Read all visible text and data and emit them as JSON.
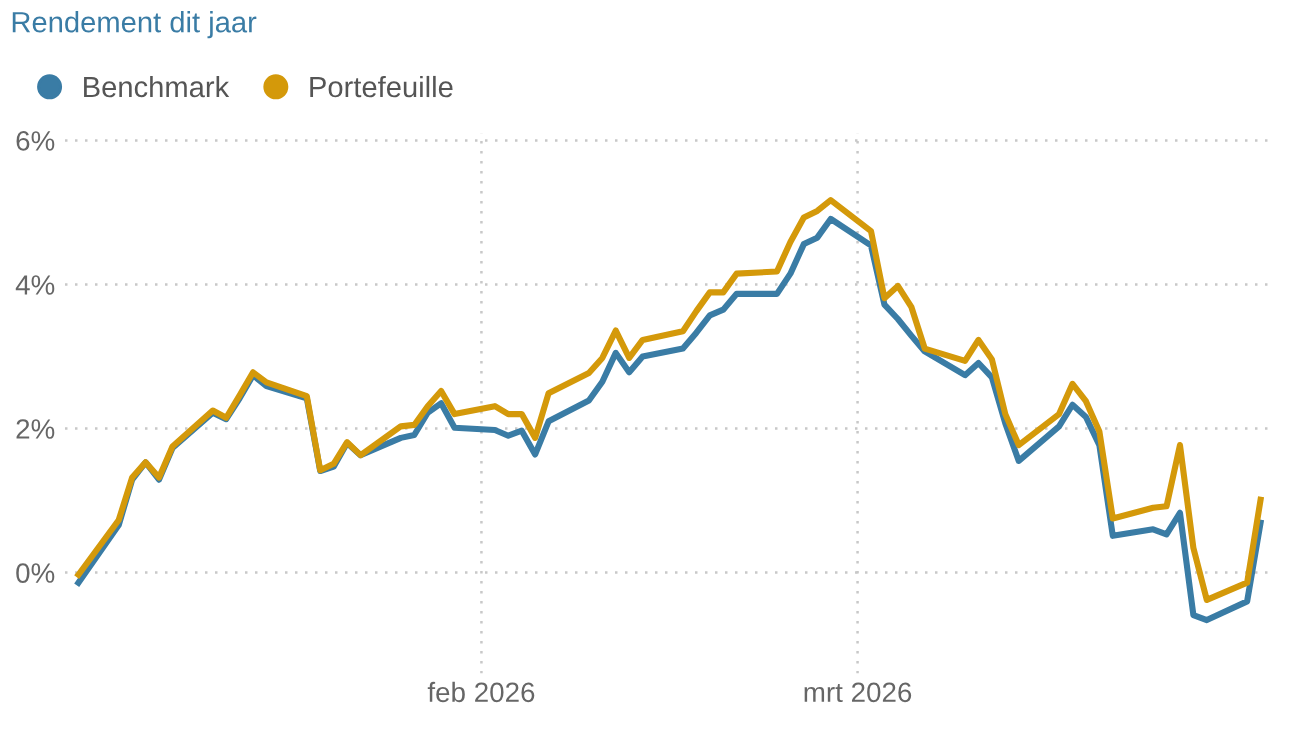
{
  "chart_data": {
    "type": "line",
    "title": "Rendement dit jaar",
    "x": [
      "2026-01-02",
      "2026-01-05",
      "2026-01-06",
      "2026-01-07",
      "2026-01-08",
      "2026-01-09",
      "2026-01-12",
      "2026-01-13",
      "2026-01-14",
      "2026-01-15",
      "2026-01-16",
      "2026-01-19",
      "2026-01-20",
      "2026-01-21",
      "2026-01-22",
      "2026-01-23",
      "2026-01-26",
      "2026-01-27",
      "2026-01-28",
      "2026-01-29",
      "2026-01-30",
      "2026-02-02",
      "2026-02-03",
      "2026-02-04",
      "2026-02-05",
      "2026-02-06",
      "2026-02-09",
      "2026-02-10",
      "2026-02-11",
      "2026-02-12",
      "2026-02-13",
      "2026-02-16",
      "2026-02-17",
      "2026-02-18",
      "2026-02-19",
      "2026-02-20",
      "2026-02-23",
      "2026-02-24",
      "2026-02-25",
      "2026-02-26",
      "2026-02-27",
      "2026-03-02",
      "2026-03-03",
      "2026-03-04",
      "2026-03-05",
      "2026-03-06",
      "2026-03-09",
      "2026-03-10",
      "2026-03-11",
      "2026-03-12",
      "2026-03-13",
      "2026-03-16",
      "2026-03-17",
      "2026-03-18",
      "2026-03-19",
      "2026-03-20",
      "2026-03-23",
      "2026-03-24",
      "2026-03-25",
      "2026-03-26",
      "2026-03-27",
      "2026-03-30",
      "2026-03-31"
    ],
    "series": [
      {
        "name": "Benchmark",
        "color": "#3a7ca5",
        "values": [
          -0.14,
          0.66,
          1.29,
          1.53,
          1.29,
          1.73,
          2.22,
          2.13,
          2.42,
          2.74,
          2.59,
          2.42,
          1.41,
          1.47,
          1.8,
          1.63,
          1.87,
          1.91,
          2.22,
          2.35,
          2.01,
          1.98,
          1.9,
          1.97,
          1.64,
          2.1,
          2.39,
          2.65,
          3.05,
          2.78,
          3.0,
          3.11,
          3.33,
          3.57,
          3.65,
          3.87,
          3.87,
          4.15,
          4.56,
          4.65,
          4.91,
          4.54,
          3.72,
          3.52,
          3.29,
          3.07,
          2.74,
          2.91,
          2.71,
          2.07,
          1.55,
          2.03,
          2.33,
          2.16,
          1.77,
          0.51,
          0.6,
          0.53,
          0.83,
          -0.59,
          -0.66,
          -0.4,
          0.69
        ]
      },
      {
        "name": "Portefeuille",
        "color": "#d4990a",
        "values": [
          -0.03,
          0.73,
          1.32,
          1.53,
          1.32,
          1.75,
          2.25,
          2.15,
          2.46,
          2.78,
          2.64,
          2.45,
          1.42,
          1.51,
          1.81,
          1.63,
          2.03,
          2.05,
          2.31,
          2.52,
          2.2,
          2.31,
          2.2,
          2.2,
          1.87,
          2.49,
          2.77,
          2.98,
          3.36,
          2.98,
          3.23,
          3.35,
          3.63,
          3.89,
          3.89,
          4.15,
          4.18,
          4.59,
          4.93,
          5.02,
          5.17,
          4.74,
          3.81,
          3.98,
          3.69,
          3.11,
          2.94,
          3.23,
          2.96,
          2.2,
          1.77,
          2.2,
          2.62,
          2.38,
          1.96,
          0.75,
          0.9,
          0.92,
          1.77,
          0.34,
          -0.38,
          -0.14,
          1.01
        ]
      }
    ],
    "xlim": [
      "2026-01-01",
      "2026-04-01"
    ],
    "xticks": [
      {
        "value": "2026-02-01",
        "label": "feb 2026"
      },
      {
        "value": "2026-03-01",
        "label": "mrt 2026"
      }
    ],
    "ylim": [
      -1.4,
      6.1
    ],
    "yticks": [
      {
        "value": 0,
        "label": "0%"
      },
      {
        "value": 2,
        "label": "2%"
      },
      {
        "value": 4,
        "label": "4%"
      },
      {
        "value": 6,
        "label": "6%"
      }
    ],
    "grid": true,
    "legend": "top left",
    "marker": "none",
    "line_style": "solid"
  }
}
